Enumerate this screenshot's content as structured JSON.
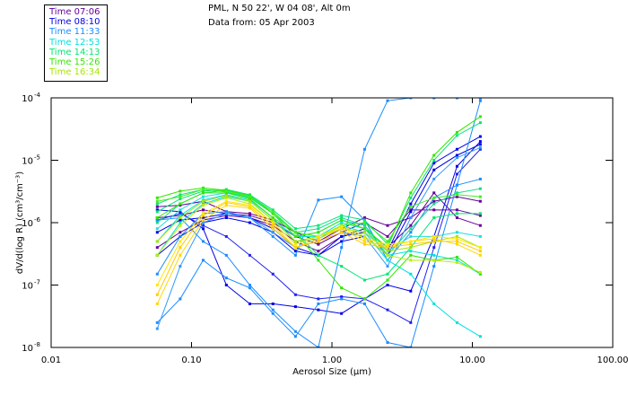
{
  "header": {
    "line1": "PML, N 50 22', W 04 08', Alt 0m",
    "line2": "Data from: 05 Apr 2003"
  },
  "legend": [
    {
      "label": "Time 07:06",
      "color": "#660099"
    },
    {
      "label": "Time 08:10",
      "color": "#0000e6"
    },
    {
      "label": "Time 11:33",
      "color": "#1a8cff"
    },
    {
      "label": "Time 12:53",
      "color": "#00e0e0"
    },
    {
      "label": "Time 14:13",
      "color": "#00e673"
    },
    {
      "label": "Time 15:26",
      "color": "#33e600"
    },
    {
      "label": "Time 16:34",
      "color": "#a6e600"
    }
  ],
  "chart_data": {
    "type": "line",
    "xscale": "log",
    "yscale": "log",
    "xlabel": "Aerosol Size (µm)",
    "ylabel": "dV/d(log R)  (cm³/cm⁻³)",
    "xlim": [
      0.01,
      100
    ],
    "ylim": [
      1e-08,
      0.0001
    ],
    "xticks": [
      0.01,
      0.1,
      1,
      10,
      100
    ],
    "xtick_labels": [
      "0.01",
      "0.10",
      "1.00",
      "10.00",
      "100.00"
    ],
    "yticks": [
      0.0001,
      1e-05,
      1e-06,
      1e-07,
      1e-08
    ],
    "ytick_labels": [
      {
        "base": "10",
        "exp": "-4"
      },
      {
        "base": "10",
        "exp": "-5"
      },
      {
        "base": "10",
        "exp": "-6"
      },
      {
        "base": "10",
        "exp": "-7"
      },
      {
        "base": "10",
        "exp": "-8"
      }
    ],
    "x": [
      0.057,
      0.083,
      0.121,
      0.177,
      0.26,
      0.38,
      0.55,
      0.8,
      1.17,
      1.71,
      2.49,
      3.64,
      5.33,
      7.78,
      11.4
    ],
    "series": [
      {
        "name": "07:06 a",
        "color": "#660099",
        "values": [
          1.8e-06,
          1.9e-06,
          2.2e-06,
          1.5e-06,
          1.4e-06,
          1.1e-06,
          7e-07,
          5e-07,
          8e-07,
          1.2e-06,
          9e-07,
          1.2e-06,
          2.2e-06,
          2.6e-06,
          2.2e-06
        ]
      },
      {
        "name": "07:06 b",
        "color": "#660099",
        "values": [
          1.2e-06,
          1.3e-06,
          1.6e-06,
          1.4e-06,
          1.3e-06,
          1e-06,
          6e-07,
          4.5e-07,
          7e-07,
          1e-06,
          6e-07,
          1.6e-06,
          1.6e-06,
          1.6e-06,
          1.3e-06
        ]
      },
      {
        "name": "07:06 c",
        "color": "#660099",
        "values": [
          4e-07,
          7e-07,
          1.1e-06,
          1.3e-06,
          1.2e-06,
          9e-07,
          5e-07,
          3.5e-07,
          6e-07,
          8e-07,
          4e-07,
          9e-07,
          3e-06,
          1.2e-06,
          9e-07
        ]
      },
      {
        "name": "08:10 a",
        "color": "#0000e6",
        "values": [
          7e-07,
          1.1e-06,
          1.2e-06,
          1.4e-06,
          1.2e-06,
          8e-07,
          4e-07,
          3e-07,
          6e-07,
          7e-07,
          3.5e-07,
          2e-06,
          9e-06,
          1.5e-05,
          2.4e-05
        ]
      },
      {
        "name": "08:10 b",
        "color": "#0000e6",
        "values": [
          3e-07,
          6e-07,
          1e-06,
          1.2e-06,
          1e-06,
          7e-07,
          3.5e-07,
          3e-07,
          5e-07,
          6e-07,
          3e-07,
          1.5e-06,
          7e-06,
          1.2e-05,
          1.8e-05
        ]
      },
      {
        "name": "08:10 c",
        "color": "#0000e6",
        "values": [
          1.6e-06,
          1.5e-06,
          8e-07,
          1e-07,
          5e-08,
          5e-08,
          4.5e-08,
          4e-08,
          3.5e-08,
          6e-08,
          1e-07,
          8e-08,
          6e-07,
          8e-06,
          2e-05
        ]
      },
      {
        "name": "08:10 d",
        "color": "#2222ee",
        "values": [
          1.1e-06,
          1.4e-06,
          9e-07,
          6e-07,
          3e-07,
          1.5e-07,
          7e-08,
          6e-08,
          6.5e-08,
          6e-08,
          4e-08,
          2.5e-08,
          4e-07,
          6e-06,
          1.5e-05
        ]
      },
      {
        "name": "11:33 a",
        "color": "#1a8cff",
        "values": [
          2.5e-08,
          6e-08,
          2.5e-07,
          1.3e-07,
          9e-08,
          3.5e-08,
          1.5e-08,
          5e-08,
          6e-08,
          5e-08,
          1.2e-08,
          1e-08,
          2e-07,
          4e-06,
          9e-05
        ]
      },
      {
        "name": "11:33 b",
        "color": "#1a8cff",
        "values": [
          1.1e-06,
          1.2e-06,
          5e-07,
          3e-07,
          1e-07,
          4e-08,
          1.8e-08,
          1e-08,
          4e-07,
          1.5e-05,
          9e-05,
          0.0001,
          0.0001,
          0.0001,
          0.0001
        ]
      },
      {
        "name": "11:33 c",
        "color": "#1a8cff",
        "values": [
          1.5e-07,
          6e-07,
          1.4e-06,
          1.5e-06,
          1.2e-06,
          6e-07,
          3e-07,
          2.3e-06,
          2.6e-06,
          1.1e-06,
          2.5e-07,
          7e-07,
          2.5e-06,
          4e-06,
          5e-06
        ]
      },
      {
        "name": "11:33 d",
        "color": "#3399ff",
        "values": [
          2e-08,
          2e-07,
          1e-06,
          1.4e-06,
          1.2e-06,
          7e-07,
          4e-07,
          5e-07,
          7e-07,
          6e-07,
          2e-07,
          1.2e-06,
          5e-06,
          1.1e-05,
          1.6e-05
        ]
      },
      {
        "name": "12:53 a",
        "color": "#00e0e0",
        "values": [
          3e-07,
          1e-06,
          2e-06,
          2.6e-06,
          2.2e-06,
          1.1e-06,
          6e-07,
          6e-07,
          1e-06,
          8e-07,
          3e-07,
          3.5e-07,
          3e-07,
          2.5e-07,
          1.5e-07
        ]
      },
      {
        "name": "12:53 b",
        "color": "#00e0e0",
        "values": [
          5e-07,
          1.3e-06,
          2.3e-06,
          2.8e-06,
          2.3e-06,
          1.2e-06,
          5e-07,
          5.5e-07,
          9e-07,
          7e-07,
          2.5e-07,
          1.5e-07,
          5e-08,
          2.5e-08,
          1.5e-08
        ]
      },
      {
        "name": "12:53 c",
        "color": "#22dddd",
        "values": [
          8e-07,
          1.6e-06,
          2.6e-06,
          3e-06,
          2.6e-06,
          1.4e-06,
          6e-07,
          7e-07,
          1.1e-06,
          9e-07,
          3.5e-07,
          6e-07,
          6e-07,
          7e-07,
          6e-07
        ]
      },
      {
        "name": "14:13 a",
        "color": "#00e673",
        "values": [
          1.5e-06,
          2.4e-06,
          3.2e-06,
          3.4e-06,
          2.8e-06,
          1.6e-06,
          8e-07,
          9e-07,
          1.3e-06,
          1.1e-06,
          4.5e-07,
          2.5e-06,
          1e-05,
          2.5e-05,
          4e-05
        ]
      },
      {
        "name": "14:13 b",
        "color": "#00e673",
        "values": [
          2e-06,
          2.8e-06,
          3.4e-06,
          3.1e-06,
          2.5e-06,
          1.4e-06,
          7e-07,
          3e-07,
          2e-07,
          1.2e-07,
          1.5e-07,
          4e-07,
          1.2e-06,
          1.4e-06,
          1.4e-06
        ]
      },
      {
        "name": "14:13 c",
        "color": "#11dd88",
        "values": [
          1e-06,
          2e-06,
          3e-06,
          3.3e-06,
          2.7e-06,
          1.5e-06,
          7e-07,
          8e-07,
          1.2e-06,
          9e-07,
          3e-07,
          8e-07,
          2e-06,
          3e-06,
          3.5e-06
        ]
      },
      {
        "name": "15:26 a",
        "color": "#33e600",
        "values": [
          2.5e-06,
          3.2e-06,
          3.6e-06,
          3.3e-06,
          2.7e-06,
          1.4e-06,
          6e-07,
          7e-07,
          1.1e-06,
          8e-07,
          4e-07,
          3e-06,
          1.2e-05,
          2.8e-05,
          5e-05
        ]
      },
      {
        "name": "15:26 b",
        "color": "#33e600",
        "values": [
          1.2e-06,
          2e-06,
          3e-06,
          3e-06,
          2.4e-06,
          1.2e-06,
          7e-07,
          2.5e-07,
          9e-08,
          6e-08,
          1.2e-07,
          3e-07,
          2.5e-07,
          2.8e-07,
          1.5e-07
        ]
      },
      {
        "name": "15:26 c",
        "color": "#44ee22",
        "values": [
          2.2e-06,
          2.6e-06,
          3.4e-06,
          3.2e-06,
          2.6e-06,
          1.5e-06,
          7e-07,
          6e-07,
          9e-07,
          1e-06,
          5e-07,
          1.8e-06,
          2.5e-06,
          2.8e-06,
          2.6e-06
        ]
      },
      {
        "name": "16:34 a",
        "color": "#a6e600",
        "values": [
          5e-07,
          1.2e-06,
          2.2e-06,
          2.7e-06,
          2.2e-06,
          1.1e-06,
          5e-07,
          6e-07,
          8e-07,
          7e-07,
          3.5e-07,
          4e-07,
          5e-07,
          6e-07,
          4e-07
        ]
      },
      {
        "name": "16:34 b",
        "color": "#bbee00",
        "values": [
          3e-07,
          9e-07,
          1.9e-06,
          2.5e-06,
          2e-06,
          1e-06,
          4.5e-07,
          6e-07,
          9e-07,
          6e-07,
          3e-07,
          2.5e-07,
          2.5e-07,
          2.3e-07,
          1.6e-07
        ]
      },
      {
        "name": "16:34 c",
        "color": "#ffcc00",
        "values": [
          7e-08,
          4e-07,
          1.3e-06,
          2.1e-06,
          1.8e-06,
          9e-07,
          4e-07,
          5e-07,
          7e-07,
          4.5e-07,
          4e-07,
          4.5e-07,
          5e-07,
          5e-07,
          3.5e-07
        ]
      },
      {
        "name": "16:34 d",
        "color": "#ffd700",
        "values": [
          5e-08,
          3e-07,
          1.1e-06,
          1.9e-06,
          1.7e-06,
          8e-07,
          4e-07,
          5.5e-07,
          8e-07,
          5e-07,
          4.2e-07,
          5e-07,
          5.5e-07,
          4.5e-07,
          3e-07
        ]
      },
      {
        "name": "16:34 e",
        "color": "#ffe600",
        "values": [
          1e-07,
          5e-07,
          1.4e-06,
          2.2e-06,
          1.9e-06,
          1e-06,
          4.5e-07,
          6e-07,
          8.5e-07,
          5.5e-07,
          4.5e-07,
          5e-07,
          6e-07,
          5.5e-07,
          4e-07
        ]
      }
    ]
  }
}
